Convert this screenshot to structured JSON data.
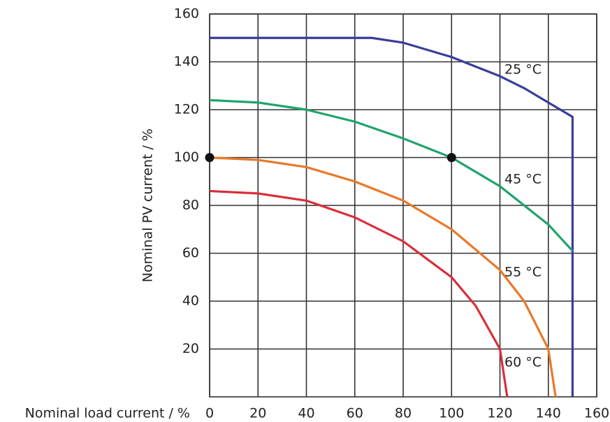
{
  "chart_data": {
    "type": "line",
    "xlabel": "Nominal load current / %",
    "ylabel": "Nominal PV current / %",
    "xlim": [
      0,
      160
    ],
    "ylim": [
      0,
      160
    ],
    "xticks": [
      0,
      20,
      40,
      60,
      80,
      100,
      120,
      140,
      160
    ],
    "yticks": [
      20,
      40,
      60,
      80,
      100,
      120,
      140,
      160
    ],
    "grid": true,
    "series": [
      {
        "name": "25 °C",
        "color": "#3a3d99",
        "x": [
          0,
          67,
          80,
          90,
          100,
          110,
          120,
          130,
          140,
          150,
          150
        ],
        "values": [
          150,
          150,
          148,
          145,
          142,
          138,
          134,
          129,
          123,
          117,
          0
        ]
      },
      {
        "name": "45 °C",
        "color": "#1fa36b",
        "x": [
          0,
          20,
          40,
          60,
          80,
          100,
          120,
          140,
          150
        ],
        "values": [
          124,
          123,
          120,
          115,
          108,
          100,
          88,
          72,
          61
        ]
      },
      {
        "name": "55 °C",
        "color": "#e8792a",
        "x": [
          0,
          20,
          40,
          60,
          80,
          100,
          120,
          130,
          140,
          143
        ],
        "values": [
          100,
          99,
          96,
          90,
          82,
          70,
          53,
          40,
          20,
          0
        ]
      },
      {
        "name": "60 °C",
        "color": "#d92e3a",
        "x": [
          0,
          20,
          40,
          60,
          80,
          100,
          110,
          120,
          123
        ],
        "values": [
          86,
          85,
          82,
          75,
          65,
          50,
          38,
          20,
          0
        ]
      }
    ],
    "points": {
      "color": "#111",
      "x": [
        0,
        100
      ],
      "values": [
        100,
        100
      ]
    }
  }
}
